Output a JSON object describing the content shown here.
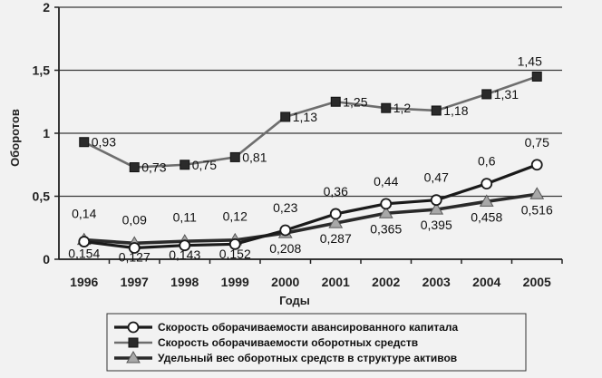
{
  "chart_data": {
    "type": "line",
    "title": "",
    "xlabel": "Годы",
    "ylabel": "Оборотов",
    "ylim": [
      0,
      2
    ],
    "yticks": [
      "0",
      "0,5",
      "1",
      "1,5",
      "2"
    ],
    "grid": "horizontal",
    "legend_position": "bottom",
    "categories": [
      "1996",
      "1997",
      "1998",
      "1999",
      "2000",
      "2001",
      "2002",
      "2003",
      "2004",
      "2005"
    ],
    "series": [
      {
        "name": "Скорость оборачиваемости авансированного капитала",
        "marker": "circle",
        "color": "#1a1a1a",
        "values": [
          0.14,
          0.09,
          0.11,
          0.12,
          0.23,
          0.36,
          0.44,
          0.47,
          0.6,
          0.75
        ],
        "labels": [
          "0,14",
          "0,09",
          "0,11",
          "0,12",
          "0,23",
          "0,36",
          "0,44",
          "0,47",
          "0,6",
          "0,75"
        ]
      },
      {
        "name": "Скорость оборачиваемости оборотных средств",
        "marker": "square",
        "color": "#6e6e6e",
        "values": [
          0.93,
          0.73,
          0.75,
          0.81,
          1.13,
          1.25,
          1.2,
          1.18,
          1.31,
          1.45
        ],
        "labels": [
          "0,93",
          "0,73",
          "0,75",
          "0,81",
          "1,13",
          "1,25",
          "1,2",
          "1,18",
          "1,31",
          "1,45"
        ]
      },
      {
        "name": "Удельный вес оборотных средств в структуре активов",
        "marker": "triangle",
        "color": "#2a2a2a",
        "values": [
          0.154,
          0.127,
          0.143,
          0.152,
          0.208,
          0.287,
          0.365,
          0.395,
          0.458,
          0.516
        ],
        "labels": [
          "0,154",
          "0,127",
          "0,143",
          "0,152",
          "0,208",
          "0,287",
          "0,365",
          "0,395",
          "0,458",
          "0,516"
        ]
      }
    ]
  }
}
